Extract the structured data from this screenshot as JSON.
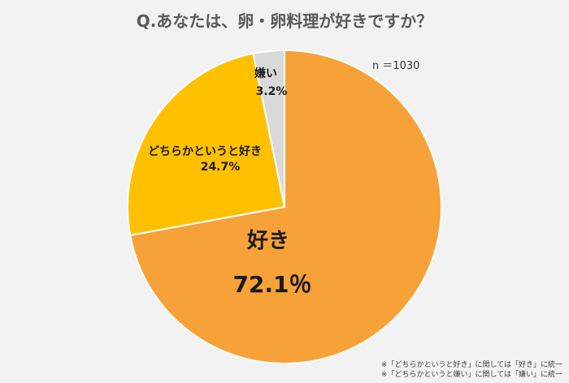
{
  "chart_data": {
    "type": "pie",
    "title": "Q.あなたは、卵・卵料理が好きですか？",
    "sample_note": "n ＝1030",
    "start_angle": "top",
    "direction": "clockwise",
    "slices": [
      {
        "label": "好き",
        "value": 72.1,
        "value_label": "72.1％",
        "color": "#f7a139"
      },
      {
        "label": "どちらかというと好き",
        "value": 24.7,
        "value_label": "24.7%",
        "color": "#ffc000"
      },
      {
        "label": "嫌い",
        "value": 3.2,
        "value_label": "3.2%",
        "color": "#d9d9d9"
      }
    ],
    "footnotes": [
      "※「どちらかというと好き」に関しては「好き」に統一",
      "※「どちらかというと嫌い」に関しては「嫌い」に統一"
    ]
  }
}
